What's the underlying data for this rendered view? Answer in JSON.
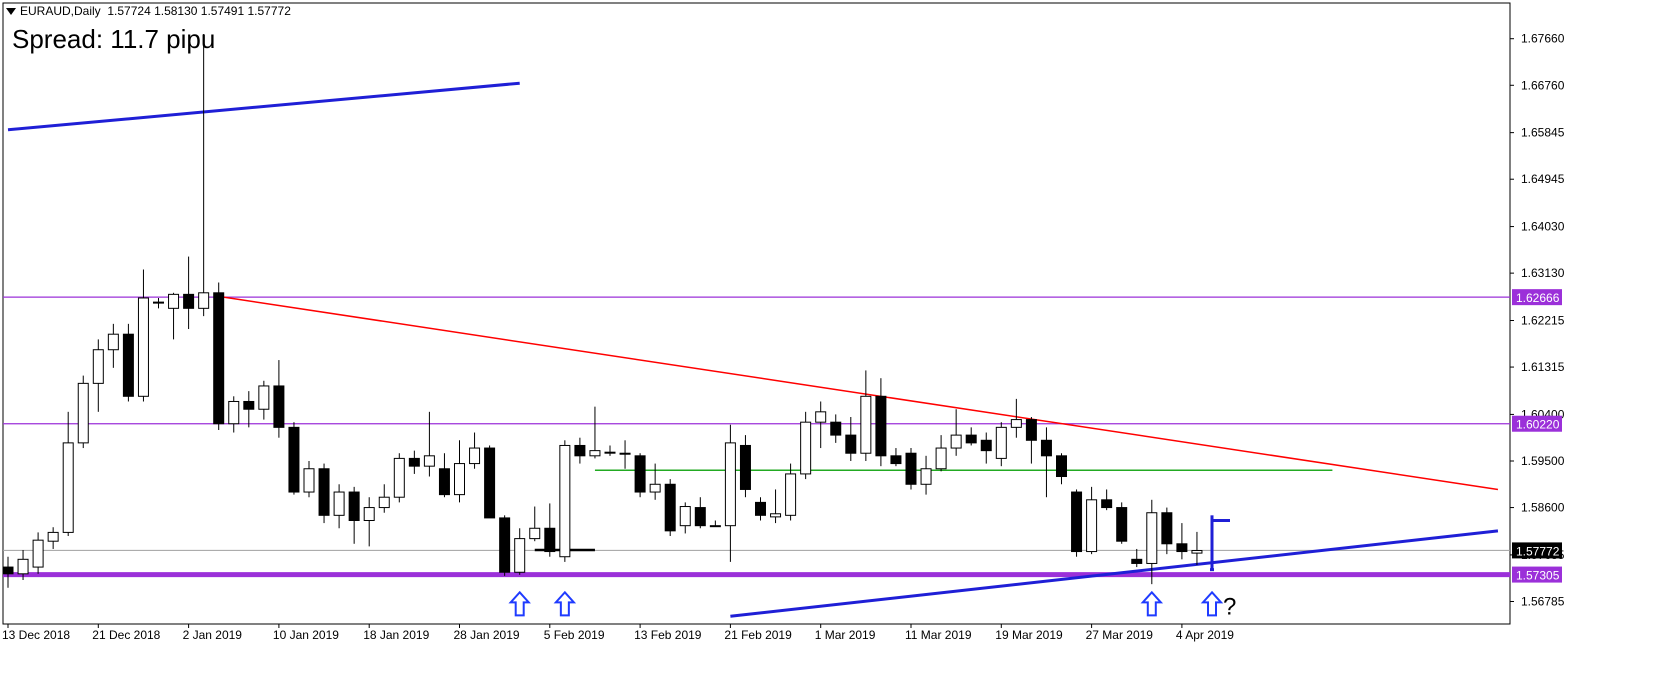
{
  "header": {
    "symbol_tf": "EURAUD,Daily",
    "ohlc": "1.57724 1.58130 1.57491 1.57772",
    "spread": "Spread: 11.7 pipu"
  },
  "colors": {
    "background": "#ffffff",
    "bull_body": "#ffffff",
    "bear_body": "#000000",
    "wick": "#000000",
    "purple_level": "#9b30d9",
    "red_trend": "#ff0000",
    "blue_trend": "#1f1fd6",
    "green_level": "#22aa22",
    "arrow": "#1f3bff"
  },
  "chart_data": {
    "type": "candlestick",
    "symbol": "EURAUD",
    "timeframe": "Daily",
    "ylim": [
      1.5635,
      1.6835
    ],
    "y_ticks": [
      "1.67660",
      "1.66760",
      "1.65845",
      "1.64945",
      "1.64030",
      "1.63130",
      "1.62215",
      "1.61315",
      "1.60400",
      "1.59500",
      "1.58600",
      "1.57685",
      "1.56785"
    ],
    "x_labels": [
      {
        "i": 0,
        "label": "13 Dec 2018"
      },
      {
        "i": 6,
        "label": "21 Dec 2018"
      },
      {
        "i": 12,
        "label": "2 Jan 2019"
      },
      {
        "i": 18,
        "label": "10 Jan 2019"
      },
      {
        "i": 24,
        "label": "18 Jan 2019"
      },
      {
        "i": 30,
        "label": "28 Jan 2019"
      },
      {
        "i": 36,
        "label": "5 Feb 2019"
      },
      {
        "i": 42,
        "label": "13 Feb 2019"
      },
      {
        "i": 48,
        "label": "21 Feb 2019"
      },
      {
        "i": 54,
        "label": "1 Mar 2019"
      },
      {
        "i": 60,
        "label": "11 Mar 2019"
      },
      {
        "i": 66,
        "label": "19 Mar 2019"
      },
      {
        "i": 72,
        "label": "27 Mar 2019"
      },
      {
        "i": 78,
        "label": "4 Apr 2019"
      }
    ],
    "candles": [
      {
        "o": 1.5745,
        "h": 1.5765,
        "l": 1.5705,
        "c": 1.5732
      },
      {
        "o": 1.5732,
        "h": 1.5778,
        "l": 1.572,
        "c": 1.576
      },
      {
        "o": 1.5745,
        "h": 1.5812,
        "l": 1.5732,
        "c": 1.5797
      },
      {
        "o": 1.5795,
        "h": 1.5822,
        "l": 1.578,
        "c": 1.5812
      },
      {
        "o": 1.5812,
        "h": 1.6045,
        "l": 1.5805,
        "c": 1.5985
      },
      {
        "o": 1.5985,
        "h": 1.6115,
        "l": 1.5975,
        "c": 1.61
      },
      {
        "o": 1.61,
        "h": 1.6185,
        "l": 1.6045,
        "c": 1.6165
      },
      {
        "o": 1.6165,
        "h": 1.6215,
        "l": 1.613,
        "c": 1.6195
      },
      {
        "o": 1.6195,
        "h": 1.6215,
        "l": 1.6065,
        "c": 1.6075
      },
      {
        "o": 1.6075,
        "h": 1.632,
        "l": 1.6065,
        "c": 1.6265
      },
      {
        "o": 1.6257,
        "h": 1.6265,
        "l": 1.6245,
        "c": 1.6257
      },
      {
        "o": 1.6245,
        "h": 1.6275,
        "l": 1.6185,
        "c": 1.6272
      },
      {
        "o": 1.6272,
        "h": 1.6345,
        "l": 1.6205,
        "c": 1.6245
      },
      {
        "o": 1.6245,
        "h": 1.6775,
        "l": 1.623,
        "c": 1.6275
      },
      {
        "o": 1.6275,
        "h": 1.6295,
        "l": 1.601,
        "c": 1.6022
      },
      {
        "o": 1.6022,
        "h": 1.6075,
        "l": 1.6005,
        "c": 1.6065
      },
      {
        "o": 1.6065,
        "h": 1.6085,
        "l": 1.6015,
        "c": 1.605
      },
      {
        "o": 1.605,
        "h": 1.6105,
        "l": 1.603,
        "c": 1.6095
      },
      {
        "o": 1.6095,
        "h": 1.6145,
        "l": 1.5995,
        "c": 1.6015
      },
      {
        "o": 1.6015,
        "h": 1.6025,
        "l": 1.5885,
        "c": 1.589
      },
      {
        "o": 1.589,
        "h": 1.595,
        "l": 1.588,
        "c": 1.5935
      },
      {
        "o": 1.5935,
        "h": 1.5945,
        "l": 1.583,
        "c": 1.5845
      },
      {
        "o": 1.5845,
        "h": 1.5905,
        "l": 1.582,
        "c": 1.589
      },
      {
        "o": 1.589,
        "h": 1.59,
        "l": 1.579,
        "c": 1.5835
      },
      {
        "o": 1.5835,
        "h": 1.588,
        "l": 1.5785,
        "c": 1.586
      },
      {
        "o": 1.586,
        "h": 1.5905,
        "l": 1.585,
        "c": 1.588
      },
      {
        "o": 1.588,
        "h": 1.5965,
        "l": 1.587,
        "c": 1.5955
      },
      {
        "o": 1.5955,
        "h": 1.597,
        "l": 1.5925,
        "c": 1.594
      },
      {
        "o": 1.594,
        "h": 1.6045,
        "l": 1.592,
        "c": 1.596
      },
      {
        "o": 1.5935,
        "h": 1.5965,
        "l": 1.588,
        "c": 1.5885
      },
      {
        "o": 1.5885,
        "h": 1.599,
        "l": 1.587,
        "c": 1.5945
      },
      {
        "o": 1.5945,
        "h": 1.6005,
        "l": 1.5935,
        "c": 1.5975
      },
      {
        "o": 1.5975,
        "h": 1.598,
        "l": 1.584,
        "c": 1.584
      },
      {
        "o": 1.584,
        "h": 1.5845,
        "l": 1.5728,
        "c": 1.5735
      },
      {
        "o": 1.5735,
        "h": 1.582,
        "l": 1.573,
        "c": 1.58
      },
      {
        "o": 1.58,
        "h": 1.5862,
        "l": 1.5795,
        "c": 1.582
      },
      {
        "o": 1.582,
        "h": 1.5868,
        "l": 1.5765,
        "c": 1.5775
      },
      {
        "o": 1.5765,
        "h": 1.599,
        "l": 1.5755,
        "c": 1.598
      },
      {
        "o": 1.598,
        "h": 1.5995,
        "l": 1.5945,
        "c": 1.596
      },
      {
        "o": 1.596,
        "h": 1.6055,
        "l": 1.5955,
        "c": 1.597
      },
      {
        "o": 1.5967,
        "h": 1.598,
        "l": 1.596,
        "c": 1.5967
      },
      {
        "o": 1.5965,
        "h": 1.599,
        "l": 1.5935,
        "c": 1.5965
      },
      {
        "o": 1.596,
        "h": 1.5965,
        "l": 1.588,
        "c": 1.589
      },
      {
        "o": 1.589,
        "h": 1.5945,
        "l": 1.5875,
        "c": 1.5905
      },
      {
        "o": 1.5905,
        "h": 1.5915,
        "l": 1.5805,
        "c": 1.5815
      },
      {
        "o": 1.5825,
        "h": 1.587,
        "l": 1.581,
        "c": 1.5862
      },
      {
        "o": 1.586,
        "h": 1.588,
        "l": 1.582,
        "c": 1.5825
      },
      {
        "o": 1.5825,
        "h": 1.5835,
        "l": 1.5825,
        "c": 1.5825
      },
      {
        "o": 1.5825,
        "h": 1.602,
        "l": 1.5755,
        "c": 1.5985
      },
      {
        "o": 1.598,
        "h": 1.6,
        "l": 1.588,
        "c": 1.5895
      },
      {
        "o": 1.587,
        "h": 1.588,
        "l": 1.5835,
        "c": 1.5845
      },
      {
        "o": 1.5842,
        "h": 1.5895,
        "l": 1.583,
        "c": 1.5848
      },
      {
        "o": 1.5845,
        "h": 1.5945,
        "l": 1.5835,
        "c": 1.5925
      },
      {
        "o": 1.5925,
        "h": 1.6045,
        "l": 1.5915,
        "c": 1.6025
      },
      {
        "o": 1.6025,
        "h": 1.6065,
        "l": 1.5975,
        "c": 1.6045
      },
      {
        "o": 1.6025,
        "h": 1.604,
        "l": 1.5985,
        "c": 1.6
      },
      {
        "o": 1.6,
        "h": 1.6035,
        "l": 1.595,
        "c": 1.5965
      },
      {
        "o": 1.5965,
        "h": 1.6125,
        "l": 1.595,
        "c": 1.6075
      },
      {
        "o": 1.6075,
        "h": 1.611,
        "l": 1.594,
        "c": 1.596
      },
      {
        "o": 1.596,
        "h": 1.5975,
        "l": 1.594,
        "c": 1.5945
      },
      {
        "o": 1.5965,
        "h": 1.5975,
        "l": 1.5895,
        "c": 1.5905
      },
      {
        "o": 1.5905,
        "h": 1.596,
        "l": 1.5885,
        "c": 1.5935
      },
      {
        "o": 1.5935,
        "h": 1.6,
        "l": 1.593,
        "c": 1.5975
      },
      {
        "o": 1.5975,
        "h": 1.605,
        "l": 1.596,
        "c": 1.6
      },
      {
        "o": 1.6,
        "h": 1.6015,
        "l": 1.598,
        "c": 1.5985
      },
      {
        "o": 1.599,
        "h": 1.6005,
        "l": 1.5945,
        "c": 1.597
      },
      {
        "o": 1.5955,
        "h": 1.6025,
        "l": 1.594,
        "c": 1.6015
      },
      {
        "o": 1.6015,
        "h": 1.607,
        "l": 1.5995,
        "c": 1.603
      },
      {
        "o": 1.603,
        "h": 1.6035,
        "l": 1.5945,
        "c": 1.599
      },
      {
        "o": 1.599,
        "h": 1.6015,
        "l": 1.588,
        "c": 1.596
      },
      {
        "o": 1.596,
        "h": 1.5965,
        "l": 1.5905,
        "c": 1.592
      },
      {
        "o": 1.589,
        "h": 1.5895,
        "l": 1.5765,
        "c": 1.5775
      },
      {
        "o": 1.5775,
        "h": 1.59,
        "l": 1.577,
        "c": 1.5875
      },
      {
        "o": 1.5875,
        "h": 1.5895,
        "l": 1.5855,
        "c": 1.586
      },
      {
        "o": 1.586,
        "h": 1.587,
        "l": 1.579,
        "c": 1.5795
      },
      {
        "o": 1.576,
        "h": 1.578,
        "l": 1.5745,
        "c": 1.5752
      },
      {
        "o": 1.5752,
        "h": 1.5875,
        "l": 1.5712,
        "c": 1.585
      },
      {
        "o": 1.585,
        "h": 1.586,
        "l": 1.577,
        "c": 1.579
      },
      {
        "o": 1.579,
        "h": 1.583,
        "l": 1.576,
        "c": 1.5775
      },
      {
        "o": 1.5772,
        "h": 1.5813,
        "l": 1.5749,
        "c": 1.5777
      }
    ],
    "levels": [
      {
        "kind": "purple",
        "price": 1.62666,
        "label": "1.62666"
      },
      {
        "kind": "purple",
        "price": 1.6022,
        "label": "1.60220"
      },
      {
        "kind": "purple-thick",
        "price": 1.57305,
        "label": "1.57305"
      },
      {
        "kind": "gray",
        "price": 1.57772,
        "label": "1.57772"
      }
    ],
    "lines": [
      {
        "kind": "blue-upper",
        "p1": {
          "i": 0,
          "y": 1.659
        },
        "p2": {
          "i": 34,
          "y": 1.668
        }
      },
      {
        "kind": "red-down",
        "p1": {
          "i": 14,
          "y": 1.6268
        },
        "p2": {
          "i": 99,
          "y": 1.5895
        }
      },
      {
        "kind": "blue-lower",
        "p1": {
          "i": 48,
          "y": 1.565
        },
        "p2": {
          "i": 99,
          "y": 1.5815
        }
      },
      {
        "kind": "green",
        "p1": {
          "i": 39,
          "y": 1.5932
        },
        "p2": {
          "i": 88,
          "y": 1.5932
        }
      },
      {
        "kind": "black",
        "p1": {
          "i": 35,
          "y": 1.5778
        },
        "p2": {
          "i": 39,
          "y": 1.5778
        }
      }
    ],
    "arrows_up": [
      {
        "i": 34
      },
      {
        "i": 37
      },
      {
        "i": 76
      },
      {
        "i": 80,
        "note": "?"
      }
    ],
    "flag": {
      "i": 80
    }
  }
}
